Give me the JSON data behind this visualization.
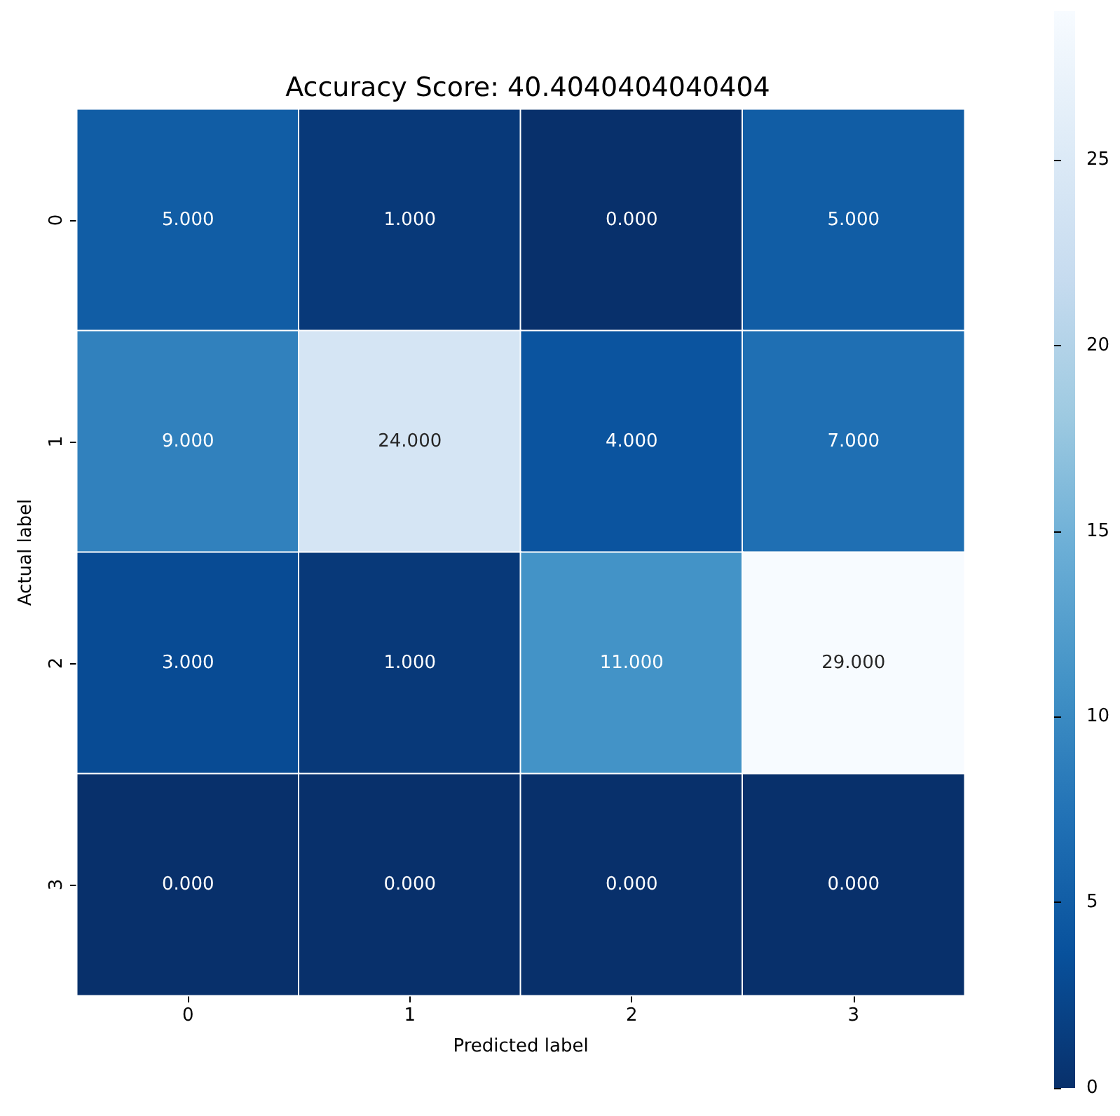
{
  "chart_data": {
    "type": "heatmap",
    "title": "Accuracy Score: 40.4040404040404",
    "xlabel": "Predicted label",
    "ylabel": "Actual label",
    "categories": [
      "0",
      "1",
      "2",
      "3"
    ],
    "y_categories": [
      "0",
      "1",
      "2",
      "3"
    ],
    "cells": [
      [
        5,
        1,
        0,
        5
      ],
      [
        9,
        24,
        4,
        7
      ],
      [
        3,
        1,
        11,
        29
      ],
      [
        0,
        0,
        0,
        0
      ]
    ],
    "cell_labels": [
      [
        "5.000",
        "1.000",
        "0.000",
        "5.000"
      ],
      [
        "9.000",
        "24.000",
        "4.000",
        "7.000"
      ],
      [
        "3.000",
        "1.000",
        "11.000",
        "29.000"
      ],
      [
        "0.000",
        "0.000",
        "0.000",
        "0.000"
      ]
    ],
    "clim": [
      0,
      29
    ],
    "cticks": [
      0,
      5,
      10,
      15,
      20,
      25
    ]
  }
}
